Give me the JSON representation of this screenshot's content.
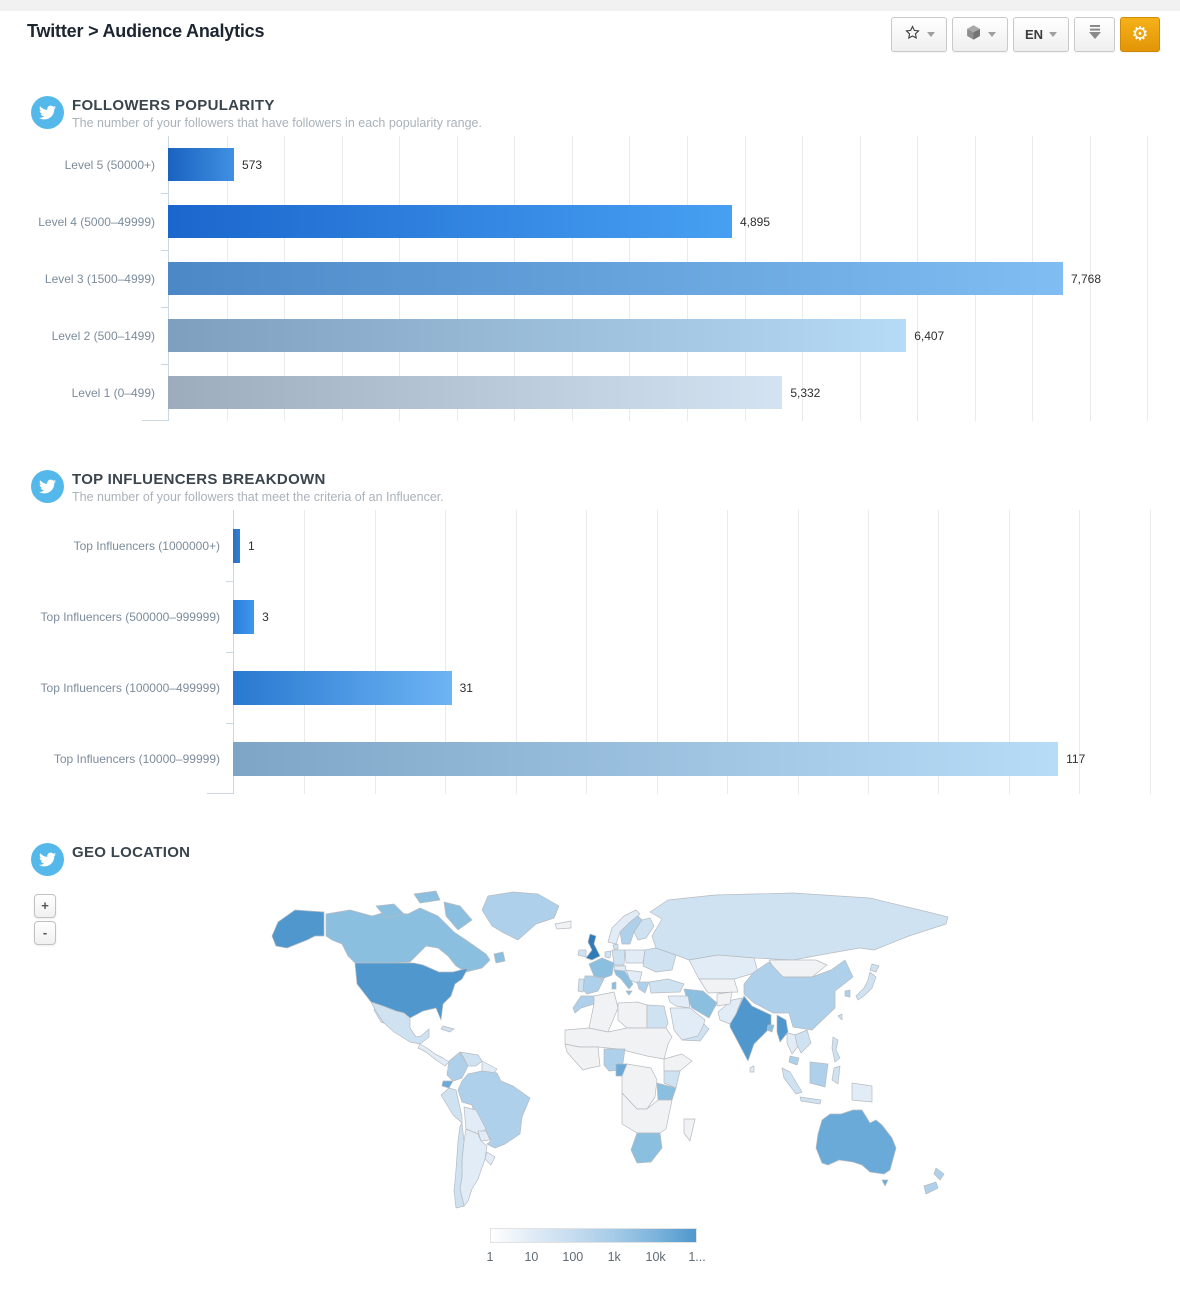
{
  "page": {
    "title": "Twitter > Audience Analytics",
    "brand_color": "#55b8ea"
  },
  "toolbar": {
    "favorites": {
      "icon": "star",
      "caret": true
    },
    "widgets": {
      "icon": "cube",
      "caret": true
    },
    "language": {
      "label": "EN",
      "caret": true
    },
    "download": {
      "icon": "download-arrow"
    },
    "settings": {
      "icon": "gear",
      "accent_color": "#eda712"
    }
  },
  "chart_data": [
    {
      "type": "bar",
      "orientation": "horizontal",
      "title": "FOLLOWERS POPULARITY",
      "subtitle": "The number of your followers that have followers in each popularity range.",
      "categories": [
        "Level 5 (50000+)",
        "Level 4 (5000–49999)",
        "Level 3 (1500–4999)",
        "Level 2 (500–1499)",
        "Level 1 (0–499)"
      ],
      "values": [
        573,
        4895,
        7768,
        6407,
        5332
      ],
      "value_labels": [
        "573",
        "4,895",
        "7,768",
        "6,407",
        "5,332"
      ],
      "xlim": [
        0,
        8766
      ],
      "grid_step": 500,
      "grid": true,
      "legend_position": "none",
      "bar_colors": [
        [
          "#1a62c0",
          "#3f90e2"
        ],
        [
          "#1b66cd",
          "#47a0f2"
        ],
        [
          "#4c88c6",
          "#7fbdf2"
        ],
        [
          "#7e9fbe",
          "#b6dbf6"
        ],
        [
          "#9dacbd",
          "#d3e3f2"
        ]
      ]
    },
    {
      "type": "bar",
      "orientation": "horizontal",
      "title": "TOP INFLUENCERS BREAKDOWN",
      "subtitle": "The number of your followers that meet the criteria of an Influencer.",
      "categories": [
        "Top Influencers (1000000+)",
        "Top Influencers (500000–999999)",
        "Top Influencers (100000–499999)",
        "Top Influencers (10000–99999)"
      ],
      "values": [
        1,
        3,
        31,
        117
      ],
      "value_labels": [
        "1",
        "3",
        "31",
        "117"
      ],
      "xlim": [
        0,
        134
      ],
      "grid_step": 10,
      "grid": true,
      "legend_position": "none",
      "bar_colors": [
        [
          "#2a70c2",
          "#2f7fd4"
        ],
        [
          "#2b7fd8",
          "#3f97ee"
        ],
        [
          "#2878d0",
          "#6db4f4"
        ],
        [
          "#7fa5c6",
          "#b7dcf8"
        ]
      ]
    },
    {
      "type": "choropleth",
      "title": "GEO LOCATION",
      "zoom_in_label": "+",
      "zoom_out_label": "-",
      "legend_labels": [
        "1",
        "10",
        "100",
        "1k",
        "10k",
        "1..."
      ],
      "default_fill": "#f1f2f4",
      "palette": {
        "0": "#f1f2f4",
        "1": "#e2ecf6",
        "2": "#cfe2f2",
        "3": "#aed0ea",
        "4": "#8bbfe0",
        "5": "#6aaad8",
        "6": "#4f97cd",
        "7": "#2f7cb8"
      },
      "countries": {
        "usa": 6,
        "alaska": 6,
        "canada": 4,
        "baffin": 4,
        "victoria": 4,
        "ellesmere": 4,
        "newfoundland": 4,
        "greenland": 3,
        "iceland": 0,
        "mexico": 2,
        "baja": 2,
        "cuba": 2,
        "central-america": 1,
        "colombia": 3,
        "venezuela": 2,
        "guyanas": 1,
        "ecuador": 5,
        "peru": 2,
        "brazil": 3,
        "bolivia": 1,
        "paraguay": 1,
        "uruguay": 1,
        "argentina": 1,
        "chile": 2,
        "uk": 7,
        "ireland": 2,
        "norway": 1,
        "sweden": 3,
        "finland": 2,
        "denmark": 2,
        "germany": 2,
        "benelux": 2,
        "france": 4,
        "spain": 3,
        "portugal": 2,
        "italy": 4,
        "alpine": 1,
        "poland": 1,
        "east-europe": 2,
        "balkans": 1,
        "greece": 3,
        "turkey": 2,
        "russia": 2,
        "kazakhstan": 1,
        "central-asia": 0,
        "mongolia": 0,
        "china": 3,
        "japan": 2,
        "south-korea": 3,
        "taiwan": 2,
        "india": 6,
        "sri-lanka": 1,
        "pakistan": 1,
        "afghanistan": 0,
        "iran": 4,
        "middle-east": 1,
        "saudi": 1,
        "yemen-oman": 2,
        "morocco": 3,
        "algeria": 0,
        "libya": 0,
        "egypt": 2,
        "sahel": 0,
        "west-africa": 0,
        "nigeria": 3,
        "cameroon": 5,
        "central-africa": 0,
        "ethiopia": 0,
        "kenya": 2,
        "tanzania": 4,
        "southern-africa": 0,
        "south-africa": 4,
        "madagascar": 0,
        "myanmar": 6,
        "bangladesh": 4,
        "thailand": 1,
        "indochina": 2,
        "malaysia": 3,
        "sumatra": 2,
        "java": 2,
        "borneo": 3,
        "sulawesi": 2,
        "papua": 1,
        "philippines": 2,
        "australia": 5,
        "tasmania": 5,
        "nz-north": 3,
        "nz-south": 3
      }
    }
  ]
}
